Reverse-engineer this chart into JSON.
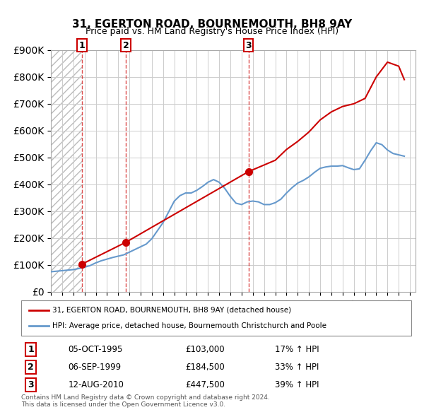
{
  "title": "31, EGERTON ROAD, BOURNEMOUTH, BH8 9AY",
  "subtitle": "Price paid vs. HM Land Registry's House Price Index (HPI)",
  "ylabel": "",
  "ylim": [
    0,
    900000
  ],
  "yticks": [
    0,
    100000,
    200000,
    300000,
    400000,
    500000,
    600000,
    700000,
    800000,
    900000
  ],
  "ytick_labels": [
    "£0",
    "£100K",
    "£200K",
    "£300K",
    "£400K",
    "£500K",
    "£600K",
    "£700K",
    "£800K",
    "£900K"
  ],
  "xlim_start": 1993.0,
  "xlim_end": 2025.5,
  "sale_dates": [
    1995.75,
    1999.67,
    2010.61
  ],
  "sale_prices": [
    103000,
    184500,
    447500
  ],
  "sale_labels": [
    "1",
    "2",
    "3"
  ],
  "hpi_dates": [
    1993.0,
    1993.5,
    1994.0,
    1994.5,
    1995.0,
    1995.5,
    1996.0,
    1996.5,
    1997.0,
    1997.5,
    1998.0,
    1998.5,
    1999.0,
    1999.5,
    2000.0,
    2000.5,
    2001.0,
    2001.5,
    2002.0,
    2002.5,
    2003.0,
    2003.5,
    2004.0,
    2004.5,
    2005.0,
    2005.5,
    2006.0,
    2006.5,
    2007.0,
    2007.5,
    2008.0,
    2008.5,
    2009.0,
    2009.5,
    2010.0,
    2010.5,
    2011.0,
    2011.5,
    2012.0,
    2012.5,
    2013.0,
    2013.5,
    2014.0,
    2014.5,
    2015.0,
    2015.5,
    2016.0,
    2016.5,
    2017.0,
    2017.5,
    2018.0,
    2018.5,
    2019.0,
    2019.5,
    2020.0,
    2020.5,
    2021.0,
    2021.5,
    2022.0,
    2022.5,
    2023.0,
    2023.5,
    2024.0,
    2024.5
  ],
  "hpi_values": [
    75000,
    77000,
    79000,
    81000,
    83000,
    87000,
    92000,
    98000,
    108000,
    116000,
    122000,
    128000,
    133000,
    138000,
    148000,
    158000,
    168000,
    178000,
    198000,
    228000,
    258000,
    298000,
    338000,
    358000,
    368000,
    368000,
    378000,
    392000,
    408000,
    418000,
    408000,
    385000,
    355000,
    330000,
    325000,
    335000,
    338000,
    335000,
    325000,
    325000,
    332000,
    345000,
    368000,
    388000,
    405000,
    415000,
    428000,
    445000,
    460000,
    465000,
    468000,
    468000,
    470000,
    462000,
    455000,
    458000,
    490000,
    525000,
    555000,
    548000,
    528000,
    515000,
    510000,
    505000
  ],
  "red_line_dates": [
    1995.75,
    1995.75,
    1999.67,
    1999.67,
    2010.61,
    2010.61,
    2013.0,
    2014.0,
    2015.0,
    2016.0,
    2017.0,
    2018.0,
    2019.0,
    2020.0,
    2021.0,
    2022.0,
    2023.0,
    2024.0,
    2024.5
  ],
  "red_line_values": [
    103000,
    103000,
    184500,
    184500,
    447500,
    447500,
    490000,
    530000,
    560000,
    595000,
    640000,
    670000,
    690000,
    700000,
    720000,
    800000,
    855000,
    840000,
    790000
  ],
  "legend_red_label": "31, EGERTON ROAD, BOURNEMOUTH, BH8 9AY (detached house)",
  "legend_blue_label": "HPI: Average price, detached house, Bournemouth Christchurch and Poole",
  "table_rows": [
    {
      "label": "1",
      "date": "05-OCT-1995",
      "price": "£103,000",
      "change": "17% ↑ HPI"
    },
    {
      "label": "2",
      "date": "06-SEP-1999",
      "price": "£184,500",
      "change": "33% ↑ HPI"
    },
    {
      "label": "3",
      "date": "12-AUG-2010",
      "price": "£447,500",
      "change": "39% ↑ HPI"
    }
  ],
  "footnote": "Contains HM Land Registry data © Crown copyright and database right 2024.\nThis data is licensed under the Open Government Licence v3.0.",
  "red_color": "#cc0000",
  "blue_color": "#6699cc",
  "hatch_color": "#cccccc",
  "grid_color": "#cccccc",
  "bg_color": "#ffffff",
  "plot_bg": "#f5f5f5"
}
